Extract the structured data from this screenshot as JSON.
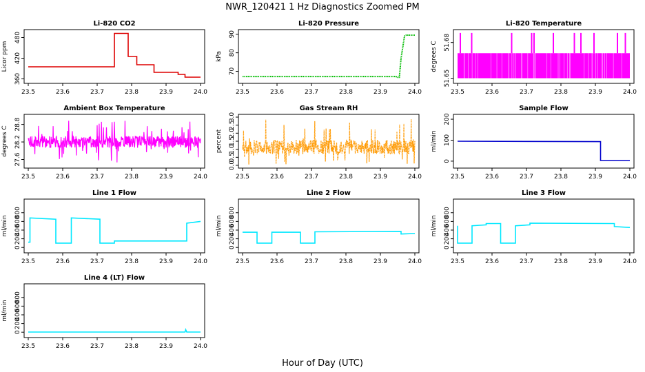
{
  "title": "NWR_120421  1 Hz Diagnostics Zoomed PM",
  "xlabel": "Hour of Day (UTC)",
  "chart_data": [
    {
      "type": "line",
      "title": "Li-820 CO2",
      "ylabel": "Licor ppm",
      "xlim": [
        23.5,
        24.0
      ],
      "xticks": [
        "23.5",
        "23.6",
        "23.7",
        "23.8",
        "23.9",
        "24.0"
      ],
      "ylim": [
        355,
        495
      ],
      "yticks": [
        "360",
        "420",
        "480"
      ],
      "ytick_values": [
        360,
        420,
        480
      ],
      "color": "#dd0000",
      "style": "step",
      "series": [
        {
          "x": [
            23.5,
            23.75,
            23.75,
            23.79,
            23.79,
            23.815,
            23.815,
            23.865,
            23.865,
            23.935,
            23.935,
            23.955,
            23.955,
            24.0
          ],
          "y": [
            395,
            395,
            492,
            492,
            425,
            425,
            401,
            401,
            379,
            379,
            373,
            373,
            365,
            365
          ]
        }
      ]
    },
    {
      "type": "line",
      "title": "Li-820 Pressure",
      "ylabel": "kPa",
      "xlim": [
        23.5,
        24.0
      ],
      "xticks": [
        "23.5",
        "23.6",
        "23.7",
        "23.8",
        "23.9",
        "24.0"
      ],
      "ylim": [
        65,
        91
      ],
      "yticks": [
        "70",
        "80",
        "90"
      ],
      "ytick_values": [
        70,
        80,
        90
      ],
      "color": "#00bb00",
      "style": "dotted",
      "series": [
        {
          "x": [
            23.5,
            23.945,
            23.95,
            23.955,
            23.96,
            23.97,
            23.975,
            24.0
          ],
          "y": [
            67.2,
            67.2,
            66.8,
            66.8,
            77,
            89,
            89.5,
            89.5
          ]
        }
      ]
    },
    {
      "type": "line",
      "title": "Li-820 Temperature",
      "ylabel": "degrees C",
      "xlim": [
        23.5,
        24.0
      ],
      "xticks": [
        "23.5",
        "23.6",
        "23.7",
        "23.8",
        "23.9",
        "24.0"
      ],
      "ylim": [
        51.648,
        51.6885
      ],
      "yticks": [
        "51.65",
        "51.68"
      ],
      "ytick_values": [
        51.65,
        51.68
      ],
      "color": "#ff00ff",
      "style": "band",
      "band": [
        51.65,
        51.671
      ],
      "spike_value": 51.688,
      "spikes": [
        23.508,
        23.541,
        23.657,
        23.715,
        23.722,
        23.778,
        23.839,
        23.858,
        23.896,
        23.964,
        23.987
      ]
    },
    {
      "type": "line",
      "title": "Ambient Box Temperature",
      "ylabel": "degrees C",
      "xlim": [
        23.5,
        24.0
      ],
      "xticks": [
        "23.5",
        "23.6",
        "23.7",
        "23.8",
        "23.9",
        "24.0"
      ],
      "ylim": [
        27.4,
        29.05
      ],
      "yticks": [
        "27.6",
        "28.2",
        "28.8"
      ],
      "ytick_values": [
        27.6,
        28.2,
        28.8
      ],
      "color": "#ff00ff",
      "style": "noise",
      "band": [
        28.0,
        28.4
      ],
      "extreme": [
        27.5,
        28.95
      ]
    },
    {
      "type": "line",
      "title": "Gas Stream RH",
      "ylabel": "percent",
      "xlim": [
        23.5,
        24.0
      ],
      "xticks": [
        "23.5",
        "23.6",
        "23.7",
        "23.8",
        "23.9",
        "24.0"
      ],
      "ylim": [
        0,
        3.0
      ],
      "yticks": [
        "0.0",
        "0.5",
        "1.0",
        "1.5",
        "2.0",
        "2.5",
        "3.0"
      ],
      "ytick_values": [
        0,
        0.5,
        1.0,
        1.5,
        2.0,
        2.5,
        3.0
      ],
      "color": "#ff9900",
      "style": "noise",
      "band": [
        0.7,
        1.6
      ],
      "extreme": [
        0.05,
        2.9
      ]
    },
    {
      "type": "line",
      "title": "Sample Flow",
      "ylabel": "ml/min",
      "xlim": [
        23.5,
        24.0
      ],
      "xticks": [
        "23.5",
        "23.6",
        "23.7",
        "23.8",
        "23.9",
        "24.0"
      ],
      "ylim": [
        -20,
        210
      ],
      "yticks": [
        "0",
        "100",
        "200"
      ],
      "ytick_values": [
        0,
        100,
        200
      ],
      "color": "#0000cc",
      "style": "step",
      "series": [
        {
          "x": [
            23.5,
            23.915,
            23.915,
            24.0
          ],
          "y": [
            95,
            93,
            3,
            3
          ]
        }
      ]
    },
    {
      "type": "line",
      "title": "Line 1 Flow",
      "ylabel": "ml/min",
      "xlim": [
        23.5,
        24.0
      ],
      "xticks": [
        "23.5",
        "23.6",
        "23.7",
        "23.8",
        "23.9",
        "24.0"
      ],
      "ylim": [
        -60,
        1050
      ],
      "yticks": [
        "0",
        "200",
        "400",
        "600",
        "800"
      ],
      "ytick_values": [
        0,
        200,
        400,
        600,
        800
      ],
      "color": "#00e8ff",
      "style": "step",
      "series": [
        {
          "x": [
            23.5,
            23.505,
            23.505,
            23.58,
            23.58,
            23.625,
            23.625,
            23.708,
            23.708,
            23.75,
            23.75,
            23.96,
            23.96,
            24.0
          ],
          "y": [
            120,
            120,
            680,
            650,
            100,
            100,
            680,
            650,
            100,
            100,
            150,
            150,
            560,
            600
          ]
        }
      ]
    },
    {
      "type": "line",
      "title": "Line 2 Flow",
      "ylabel": "ml/min",
      "xlim": [
        23.5,
        24.0
      ],
      "xticks": [
        "23.5",
        "23.6",
        "23.7",
        "23.8",
        "23.9",
        "24.0"
      ],
      "ylim": [
        -60,
        1050
      ],
      "yticks": [
        "0",
        "200",
        "400",
        "600",
        "800"
      ],
      "ytick_values": [
        0,
        200,
        400,
        600,
        800
      ],
      "color": "#00e8ff",
      "style": "step",
      "series": [
        {
          "x": [
            23.5,
            23.542,
            23.542,
            23.585,
            23.585,
            23.668,
            23.668,
            23.71,
            23.71,
            23.96,
            23.96,
            24.0
          ],
          "y": [
            350,
            350,
            100,
            100,
            350,
            350,
            100,
            100,
            360,
            370,
            310,
            320
          ]
        }
      ]
    },
    {
      "type": "line",
      "title": "Line 3 Flow",
      "ylabel": "ml/min",
      "xlim": [
        23.5,
        24.0
      ],
      "xticks": [
        "23.5",
        "23.6",
        "23.7",
        "23.8",
        "23.9",
        "24.0"
      ],
      "ylim": [
        -60,
        1050
      ],
      "yticks": [
        "0",
        "200",
        "400",
        "600",
        "800"
      ],
      "ytick_values": [
        0,
        200,
        400,
        600,
        800
      ],
      "color": "#00e8ff",
      "style": "step",
      "series": [
        {
          "x": [
            23.5,
            23.5,
            23.542,
            23.542,
            23.583,
            23.583,
            23.625,
            23.625,
            23.668,
            23.668,
            23.71,
            23.71,
            23.955,
            23.955,
            24.0
          ],
          "y": [
            500,
            100,
            100,
            500,
            520,
            550,
            550,
            100,
            100,
            500,
            520,
            560,
            550,
            480,
            460
          ]
        }
      ]
    },
    {
      "type": "line",
      "title": "Line 4 (LT) Flow",
      "ylabel": "ml/min",
      "xlim": [
        23.5,
        24.0
      ],
      "xticks": [
        "23.5",
        "23.6",
        "23.7",
        "23.8",
        "23.9",
        "24.0"
      ],
      "ylim": [
        -60,
        1050
      ],
      "yticks": [
        "0",
        "200",
        "400",
        "600",
        "800"
      ],
      "ytick_values": [
        0,
        200,
        400,
        600,
        800
      ],
      "color": "#00e8ff",
      "style": "step",
      "series": [
        {
          "x": [
            23.5,
            23.955,
            23.957,
            23.96,
            23.962,
            24.0
          ],
          "y": [
            3,
            3,
            60,
            3,
            3,
            3
          ]
        }
      ]
    }
  ]
}
